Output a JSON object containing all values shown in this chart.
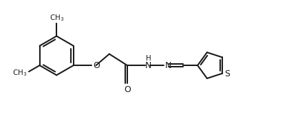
{
  "bg_color": "#ffffff",
  "line_color": "#1a1a1a",
  "line_width": 1.5,
  "figsize": [
    4.2,
    1.76
  ],
  "dpi": 100,
  "xlim": [
    0.0,
    8.5
  ],
  "ylim": [
    -1.4,
    2.2
  ]
}
